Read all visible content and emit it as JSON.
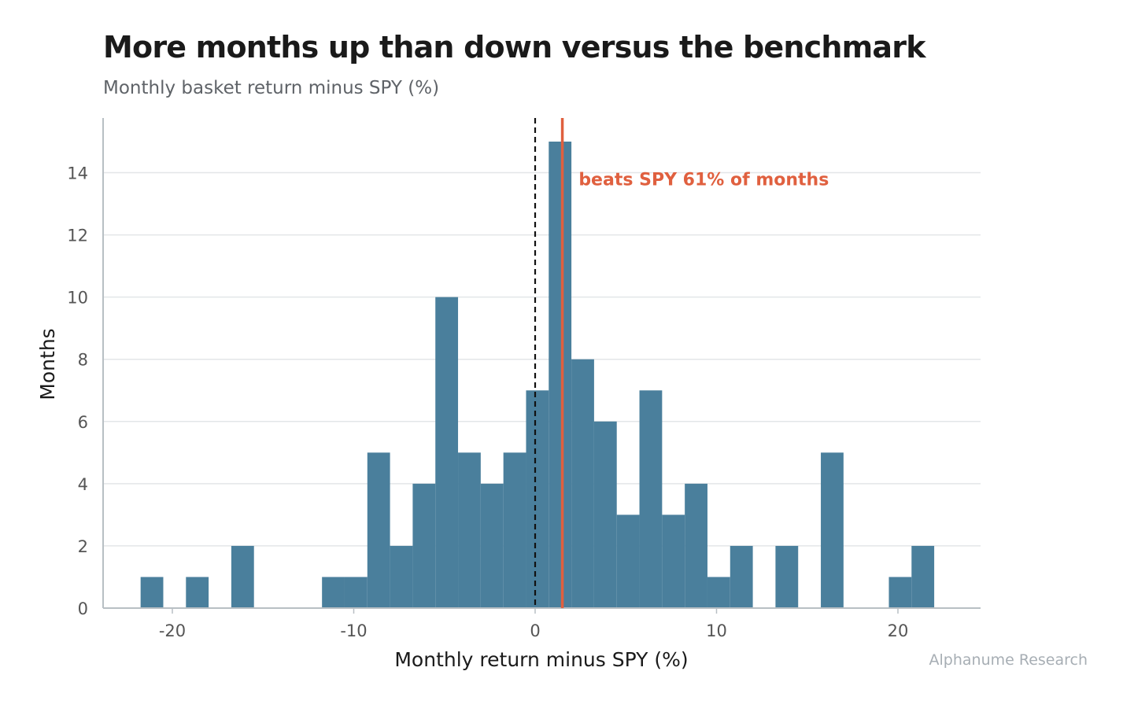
{
  "title": "More months up than down versus the benchmark",
  "subtitle": "Monthly basket return minus SPY (%)",
  "credit": "Alphanume Research",
  "colors": {
    "bars": "#4a7f9c",
    "mean_line": "#e0603f",
    "annotation": "#e0603f",
    "zero_line": "#111111",
    "grid": "#e3e6e8",
    "axis": "#b8bfc4",
    "tick_text": "#555555",
    "label_text": "#1a1a1a"
  },
  "chart_data": {
    "type": "histogram",
    "xlabel": "Monthly return minus SPY (%)",
    "ylabel": "Months",
    "xlim": [
      -24,
      24.5
    ],
    "ylim": [
      0,
      15.6
    ],
    "xticks": [
      -20,
      -10,
      0,
      10,
      20
    ],
    "yticks": [
      0,
      2,
      4,
      6,
      8,
      10,
      12,
      14
    ],
    "grid": "horizontal",
    "bin_width": 1.25,
    "bins": [
      {
        "x0": -21.75,
        "count": 1
      },
      {
        "x0": -20.5,
        "count": 0
      },
      {
        "x0": -19.25,
        "count": 1
      },
      {
        "x0": -18.0,
        "count": 0
      },
      {
        "x0": -16.75,
        "count": 2
      },
      {
        "x0": -15.5,
        "count": 0
      },
      {
        "x0": -14.25,
        "count": 0
      },
      {
        "x0": -13.0,
        "count": 0
      },
      {
        "x0": -11.75,
        "count": 1
      },
      {
        "x0": -10.5,
        "count": 1
      },
      {
        "x0": -9.25,
        "count": 5
      },
      {
        "x0": -8.0,
        "count": 2
      },
      {
        "x0": -6.75,
        "count": 4
      },
      {
        "x0": -5.5,
        "count": 10
      },
      {
        "x0": -4.25,
        "count": 5
      },
      {
        "x0": -3.0,
        "count": 4
      },
      {
        "x0": -1.75,
        "count": 5
      },
      {
        "x0": -0.5,
        "count": 7
      },
      {
        "x0": 0.75,
        "count": 15
      },
      {
        "x0": 2.0,
        "count": 8
      },
      {
        "x0": 3.25,
        "count": 6
      },
      {
        "x0": 4.5,
        "count": 3
      },
      {
        "x0": 5.75,
        "count": 7
      },
      {
        "x0": 7.0,
        "count": 3
      },
      {
        "x0": 8.25,
        "count": 4
      },
      {
        "x0": 9.5,
        "count": 1
      },
      {
        "x0": 10.75,
        "count": 2
      },
      {
        "x0": 12.0,
        "count": 0
      },
      {
        "x0": 13.25,
        "count": 2
      },
      {
        "x0": 14.5,
        "count": 0
      },
      {
        "x0": 15.75,
        "count": 5
      },
      {
        "x0": 17.0,
        "count": 0
      },
      {
        "x0": 18.25,
        "count": 0
      },
      {
        "x0": 19.5,
        "count": 1
      },
      {
        "x0": 20.75,
        "count": 2
      }
    ],
    "zero_line": {
      "x": 0,
      "style": "dashed"
    },
    "mean_line": {
      "x": 1.5
    },
    "annotation": {
      "text": "beats SPY 61% of months",
      "x": 2.4,
      "y": 13.8
    }
  }
}
